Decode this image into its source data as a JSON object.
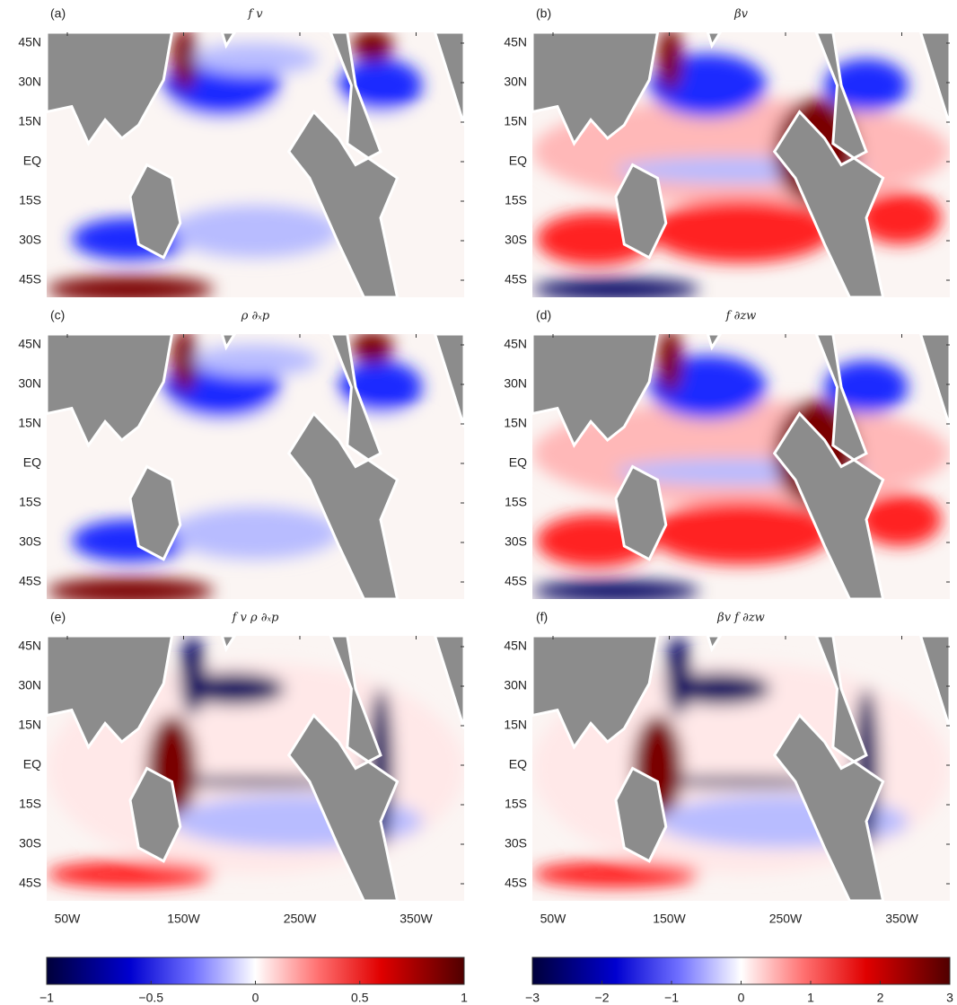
{
  "panels": [
    {
      "label": "(a)",
      "title": "f v"
    },
    {
      "label": "(b)",
      "title": "βv"
    },
    {
      "label": "(c)",
      "title": "ρ ∂ₓp"
    },
    {
      "label": "(d)",
      "title": "f ∂zw"
    },
    {
      "label": "(e)",
      "title": "f v   ρ ∂ₓp"
    },
    {
      "label": "(f)",
      "title": "βv   f ∂zw"
    }
  ],
  "latitude_labels": [
    "45N",
    "30N",
    "15N",
    "EQ",
    "15S",
    "30S",
    "45S"
  ],
  "longitude_labels": [
    "50W",
    "150W",
    "250W",
    "350W"
  ],
  "colorbars": [
    {
      "lim": [
        -1,
        1
      ],
      "ticks": [
        {
          "value": -1,
          "label": "−1"
        },
        {
          "value": -0.5,
          "label": "−0.5"
        },
        0,
        0.5,
        1
      ]
    },
    {
      "lim": [
        -3,
        3
      ],
      "ticks": [
        {
          "value": -3,
          "label": "−3"
        },
        {
          "value": -2,
          "label": "−2"
        },
        {
          "value": -1,
          "label": "−1"
        },
        0,
        1,
        2,
        3
      ]
    }
  ]
}
